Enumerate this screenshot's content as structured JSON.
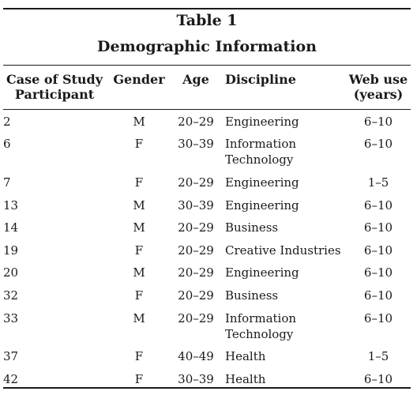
{
  "caption": {
    "number": "Table 1",
    "title": "Demographic Information"
  },
  "headers": {
    "case_line1": "Case of Study",
    "case_line2": "Participant",
    "gender": "Gender",
    "age": "Age",
    "discipline": "Discipline",
    "web_line1": "Web use",
    "web_line2": "(years)"
  },
  "rows": [
    {
      "case": "2",
      "gender": "M",
      "age": "20–29",
      "discipline_l1": "Engineering",
      "discipline_l2": "",
      "web": "6–10"
    },
    {
      "case": "6",
      "gender": "F",
      "age": "30–39",
      "discipline_l1": "Information",
      "discipline_l2": "Technology",
      "web": "6–10"
    },
    {
      "case": "7",
      "gender": "F",
      "age": "20–29",
      "discipline_l1": "Engineering",
      "discipline_l2": "",
      "web": "1–5"
    },
    {
      "case": "13",
      "gender": "M",
      "age": "30–39",
      "discipline_l1": "Engineering",
      "discipline_l2": "",
      "web": "6–10"
    },
    {
      "case": "14",
      "gender": "M",
      "age": "20–29",
      "discipline_l1": "Business",
      "discipline_l2": "",
      "web": "6–10"
    },
    {
      "case": "19",
      "gender": "F",
      "age": "20–29",
      "discipline_l1": "Creative Industries",
      "discipline_l2": "",
      "web": "6–10"
    },
    {
      "case": "20",
      "gender": "M",
      "age": "20–29",
      "discipline_l1": "Engineering",
      "discipline_l2": "",
      "web": "6–10"
    },
    {
      "case": "32",
      "gender": "F",
      "age": "20–29",
      "discipline_l1": "Business",
      "discipline_l2": "",
      "web": "6–10"
    },
    {
      "case": "33",
      "gender": "M",
      "age": "20–29",
      "discipline_l1": "Information",
      "discipline_l2": "Technology",
      "web": "6–10"
    },
    {
      "case": "37",
      "gender": "F",
      "age": "40–49",
      "discipline_l1": "Health",
      "discipline_l2": "",
      "web": "1–5"
    },
    {
      "case": "42",
      "gender": "F",
      "age": "30–39",
      "discipline_l1": "Health",
      "discipline_l2": "",
      "web": "6–10"
    }
  ]
}
